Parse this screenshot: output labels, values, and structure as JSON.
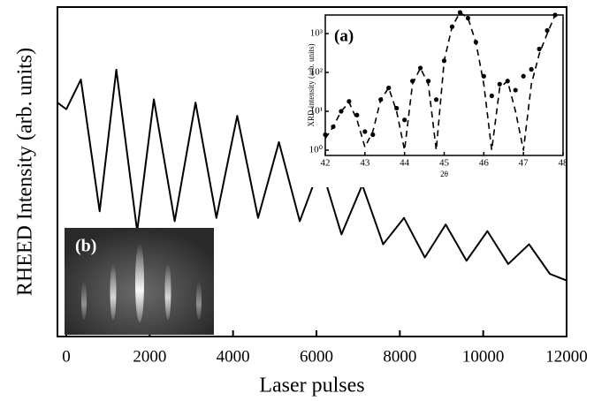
{
  "chart_data": [
    {
      "type": "line",
      "xlabel": "Laser pulses",
      "ylabel": "RHEED Intensity (arb. units)",
      "xlim": [
        -212,
        12000
      ],
      "xticks": [
        0,
        2000,
        4000,
        6000,
        8000,
        10000,
        12000
      ],
      "ylim": [
        0,
        1
      ],
      "color": "#000000",
      "inset_label": "(b)",
      "x": [
        -212,
        0,
        350,
        800,
        1200,
        1700,
        2100,
        2600,
        3100,
        3600,
        4100,
        4600,
        5100,
        5600,
        6100,
        6600,
        7100,
        7600,
        8100,
        8600,
        9100,
        9600,
        10100,
        10600,
        11100,
        11600,
        12000
      ],
      "values": [
        0.71,
        0.69,
        0.78,
        0.38,
        0.81,
        0.32,
        0.72,
        0.35,
        0.71,
        0.36,
        0.67,
        0.36,
        0.59,
        0.35,
        0.52,
        0.31,
        0.46,
        0.28,
        0.36,
        0.24,
        0.34,
        0.23,
        0.32,
        0.22,
        0.28,
        0.19,
        0.17
      ]
    },
    {
      "type": "scatter",
      "label": "(a)",
      "xlabel": "2θ",
      "ylabel": "XRD intensity (arb. units)",
      "xlim": [
        42,
        48
      ],
      "xticks": [
        42,
        43,
        44,
        45,
        46,
        47,
        48
      ],
      "ylim": [
        0.73,
        3000
      ],
      "log_y": true,
      "yticks": [
        {
          "value": 1,
          "label": "10⁰"
        },
        {
          "value": 10,
          "label": "10¹"
        },
        {
          "value": 100,
          "label": "10²"
        },
        {
          "value": 1000,
          "label": "10³"
        }
      ],
      "x": [
        42.0,
        42.2,
        42.4,
        42.6,
        42.8,
        43.0,
        43.2,
        43.4,
        43.6,
        43.8,
        44.0,
        44.2,
        44.4,
        44.6,
        44.8,
        45.0,
        45.2,
        45.4,
        45.6,
        45.8,
        46.0,
        46.2,
        46.4,
        46.6,
        46.8,
        47.0,
        47.2,
        47.4,
        47.6,
        47.8
      ],
      "series": [
        {
          "type": "scatter",
          "color": "#000000",
          "values": [
            2.5,
            4,
            10,
            18,
            8,
            3,
            2.5,
            20,
            40,
            12,
            6,
            60,
            130,
            60,
            20,
            200,
            1500,
            3500,
            2500,
            600,
            80,
            25,
            50,
            60,
            35,
            80,
            120,
            400,
            1200,
            3000
          ]
        },
        {
          "type": "line",
          "style": "dashed",
          "color": "#000000",
          "values": [
            2,
            4,
            10,
            17,
            6,
            1.2,
            3,
            20,
            40,
            10,
            1,
            50,
            130,
            50,
            1,
            200,
            1500,
            3500,
            2500,
            600,
            50,
            1,
            40,
            60,
            10,
            1,
            50,
            300,
            1000,
            3000
          ]
        }
      ]
    }
  ]
}
